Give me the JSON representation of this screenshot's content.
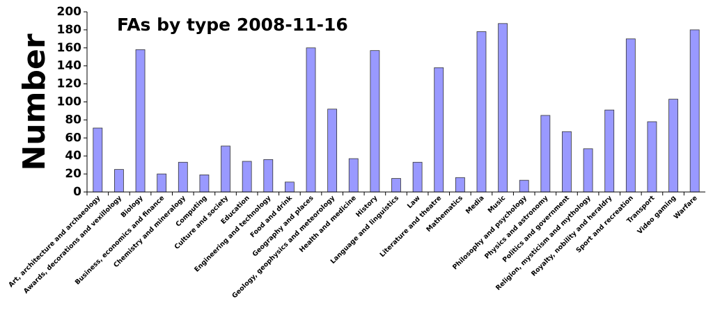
{
  "chart_data": {
    "type": "bar",
    "title": "FAs by type 2008-11-16",
    "y_label": "Number",
    "categories": [
      "Art, architecture and archaeology",
      "Awards, decorations and vexillology",
      "Biology",
      "Business, economics and finance",
      "Chemistry and mineralogy",
      "Computing",
      "Culture and society",
      "Education",
      "Engineering and technology",
      "Food and drink",
      "Geography and places",
      "Geology, geophysics and meteorology",
      "Health and medicine",
      "History",
      "Language and linguistics",
      "Law",
      "Literature and theatre",
      "Mathematics",
      "Media",
      "Music",
      "Philosophy and psychology",
      "Physics and astronomy",
      "Politics and government",
      "Religion, mysticism and mythology",
      "Royalty, nobility and heraldry",
      "Sport and recreation",
      "Transport",
      "Video gaming",
      "Warfare"
    ],
    "values": [
      71,
      25,
      158,
      20,
      33,
      19,
      51,
      34,
      36,
      11,
      160,
      92,
      37,
      157,
      15,
      33,
      138,
      16,
      178,
      187,
      13,
      85,
      67,
      48,
      91,
      170,
      78,
      103,
      180
    ],
    "color": "#9999ff",
    "ylim": [
      0,
      200
    ],
    "yticks": [
      0,
      20,
      40,
      60,
      80,
      100,
      120,
      140,
      160,
      180,
      200
    ],
    "grid": false
  }
}
